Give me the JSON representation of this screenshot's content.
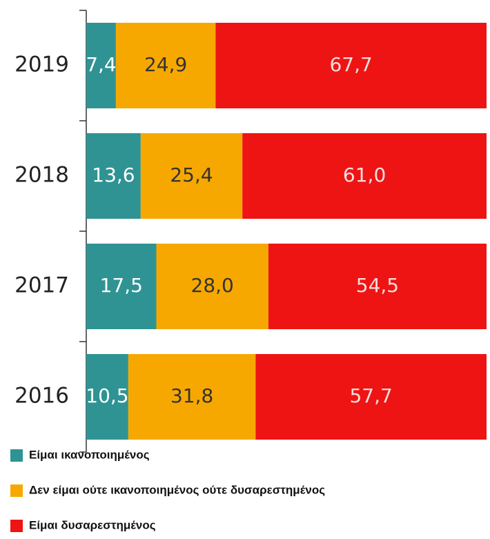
{
  "chart_data": {
    "type": "stacked-barh",
    "categories": [
      "2019",
      "2018",
      "2017",
      "2016"
    ],
    "xlim": [
      0,
      100
    ],
    "series": [
      {
        "name": "Είμαι ικανοποιημένος",
        "color": "#2f9393",
        "label_color": "#ffffff",
        "values": [
          7.4,
          13.6,
          17.5,
          10.5
        ],
        "value_labels": [
          "7,4",
          "13,6",
          "17,5",
          "10,5"
        ]
      },
      {
        "name": "Δεν είμαι ούτε ικανοποιημένος ούτε δυσαρεστημένος",
        "color": "#f7a800",
        "label_color": "#333333",
        "values": [
          24.9,
          25.4,
          28.0,
          31.8
        ],
        "value_labels": [
          "24,9",
          "25,4",
          "28,0",
          "31,8"
        ]
      },
      {
        "name": "Είμαι δυσαρεστημένος",
        "color": "#ee1414",
        "label_color": "#f4dede",
        "values": [
          67.7,
          61.0,
          54.5,
          57.7
        ],
        "value_labels": [
          "67,7",
          "61,0",
          "54,5",
          "57,7"
        ]
      }
    ]
  }
}
